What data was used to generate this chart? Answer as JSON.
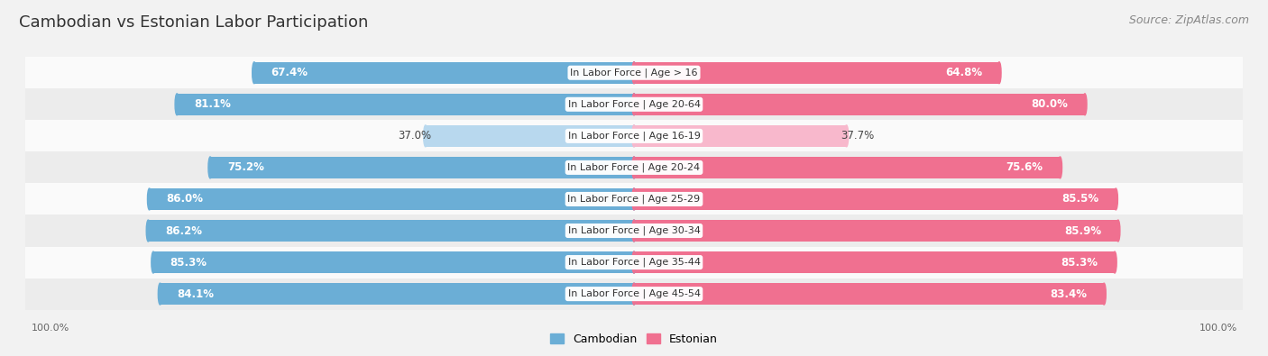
{
  "title": "Cambodian vs Estonian Labor Participation",
  "source": "Source: ZipAtlas.com",
  "categories": [
    "In Labor Force | Age > 16",
    "In Labor Force | Age 20-64",
    "In Labor Force | Age 16-19",
    "In Labor Force | Age 20-24",
    "In Labor Force | Age 25-29",
    "In Labor Force | Age 30-34",
    "In Labor Force | Age 35-44",
    "In Labor Force | Age 45-54"
  ],
  "cambodian_values": [
    67.4,
    81.1,
    37.0,
    75.2,
    86.0,
    86.2,
    85.3,
    84.1
  ],
  "estonian_values": [
    64.8,
    80.0,
    37.7,
    75.6,
    85.5,
    85.9,
    85.3,
    83.4
  ],
  "cambodian_color": "#6baed6",
  "estonian_color": "#f07090",
  "cambodian_color_light": "#b8d8ee",
  "estonian_color_light": "#f8b8cc",
  "bar_height": 0.68,
  "bg_color": "#f2f2f2",
  "row_bg_light": "#fafafa",
  "row_bg_dark": "#ececec",
  "legend_cambodian": "Cambodian",
  "legend_estonian": "Estonian",
  "axis_label": "100.0%",
  "title_fontsize": 13,
  "source_fontsize": 9,
  "bar_label_fontsize": 8.5,
  "category_fontsize": 8,
  "legend_fontsize": 9,
  "threshold": 60,
  "max_val": 100
}
